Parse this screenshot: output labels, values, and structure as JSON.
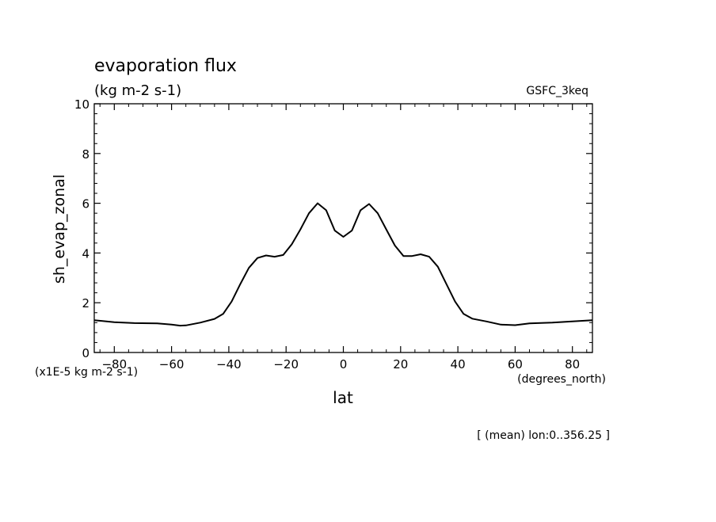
{
  "chart_data": {
    "type": "line",
    "title": "evaporation flux",
    "units": "(kg m-2 s-1)",
    "dataset_label": "GSFC_3keq",
    "xlabel": "lat",
    "ylabel": "sh_evap_zonal",
    "y_scale_note": "(x1E-5 kg m-2 s-1)",
    "x_units_note": "(degrees_north)",
    "footnote": "[ (mean) lon:0..356.25 ]",
    "xlim": [
      -87,
      87
    ],
    "ylim": [
      0,
      10
    ],
    "x_ticks": [
      -80,
      -60,
      -40,
      -20,
      0,
      20,
      40,
      60,
      80
    ],
    "x_tick_labels": [
      "-80",
      "-60",
      "-40",
      "-20",
      "0",
      "20",
      "40",
      "60",
      "80"
    ],
    "y_ticks": [
      0,
      2,
      4,
      6,
      8,
      10
    ],
    "y_tick_labels": [
      "0",
      "2",
      "4",
      "6",
      "8",
      "10"
    ],
    "grid": false,
    "line_color": "#000000",
    "series": [
      {
        "x": [
          -87,
          -80,
          -73,
          -65,
          -60,
          -57,
          -55,
          -50,
          -45,
          -42,
          -39,
          -36,
          -33,
          -30,
          -27,
          -24,
          -21,
          -18,
          -15,
          -12,
          -9,
          -6,
          -3,
          0,
          3,
          6,
          9,
          12,
          15,
          18,
          21,
          24,
          27,
          30,
          33,
          36,
          39,
          42,
          45,
          50,
          55,
          60,
          65,
          73,
          80,
          87
        ],
        "y": [
          1.3,
          1.22,
          1.18,
          1.17,
          1.12,
          1.08,
          1.09,
          1.2,
          1.35,
          1.55,
          2.05,
          2.75,
          3.4,
          3.8,
          3.9,
          3.85,
          3.92,
          4.35,
          4.95,
          5.6,
          6.0,
          5.72,
          4.9,
          4.65,
          4.9,
          5.72,
          5.97,
          5.6,
          4.95,
          4.3,
          3.88,
          3.88,
          3.95,
          3.85,
          3.45,
          2.75,
          2.05,
          1.55,
          1.36,
          1.25,
          1.12,
          1.1,
          1.17,
          1.2,
          1.25,
          1.3
        ]
      }
    ]
  }
}
